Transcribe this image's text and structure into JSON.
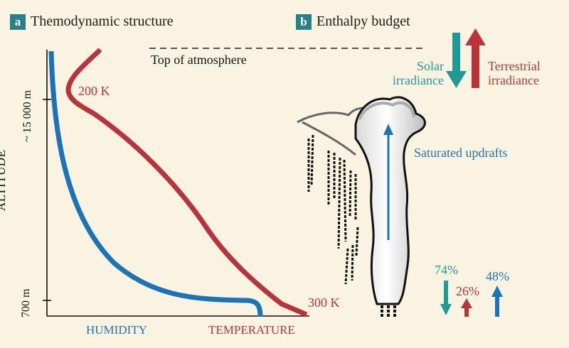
{
  "panel_a": {
    "letter": "a",
    "title": "Themodynamic structure",
    "y_axis_title": "ALTITUDE",
    "tick_top": "~ 15 000 m",
    "tick_bottom": "700 m",
    "humidity_label": "HUMIDITY",
    "temperature_label": "TEMPERATURE",
    "temp_top_label": "200 K",
    "temp_bottom_label": "300 K"
  },
  "panel_b": {
    "letter": "b",
    "title": "Enthalpy budget",
    "toa_label": "Top of atmosphere",
    "solar_label_line1": "Solar",
    "solar_label_line2": "irradiance",
    "terrestrial_label_line1": "Terrestrial",
    "terrestrial_label_line2": "irradiance",
    "updraft_label": "Saturated updrafts",
    "pct_solar": "74%",
    "pct_terrestrial": "26%",
    "pct_updraft": "48%"
  },
  "colors": {
    "background": "#faf3e1",
    "teal": "#1f9a94",
    "red": "#b8343a",
    "blue": "#1c74b8",
    "badge": "#2b7f86"
  }
}
